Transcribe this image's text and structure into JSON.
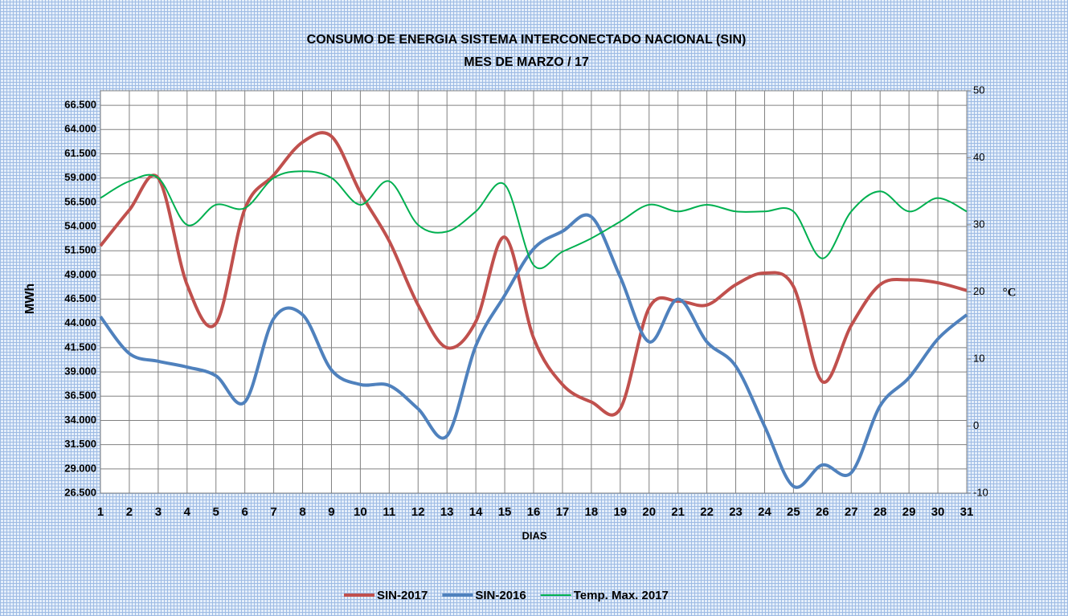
{
  "chart_data": {
    "type": "line",
    "title": "CONSUMO DE ENERGIA SISTEMA INTERCONECTADO NACIONAL (SIN)",
    "subtitle": "MES DE  MARZO / 17",
    "x_label": "DIAS",
    "y_label": "MWh",
    "y2_label": "°C",
    "x": [
      1,
      2,
      3,
      4,
      5,
      6,
      7,
      8,
      9,
      10,
      11,
      12,
      13,
      14,
      15,
      16,
      17,
      18,
      19,
      20,
      21,
      22,
      23,
      24,
      25,
      26,
      27,
      28,
      29,
      30,
      31
    ],
    "xlim": [
      1,
      31
    ],
    "xticks": [
      1,
      2,
      3,
      4,
      5,
      6,
      7,
      8,
      9,
      10,
      11,
      12,
      13,
      14,
      15,
      16,
      17,
      18,
      19,
      20,
      21,
      22,
      23,
      24,
      25,
      26,
      27,
      28,
      29,
      30,
      31
    ],
    "ylim": [
      26500,
      68000
    ],
    "yticks": [
      {
        "value": 26500,
        "label": "26.500"
      },
      {
        "value": 29000,
        "label": "29.000"
      },
      {
        "value": 31500,
        "label": "31.500"
      },
      {
        "value": 34000,
        "label": "34.000"
      },
      {
        "value": 36500,
        "label": "36.500"
      },
      {
        "value": 39000,
        "label": "39.000"
      },
      {
        "value": 41500,
        "label": "41.500"
      },
      {
        "value": 44000,
        "label": "44.000"
      },
      {
        "value": 46500,
        "label": "46.500"
      },
      {
        "value": 49000,
        "label": "49.000"
      },
      {
        "value": 51500,
        "label": "51.500"
      },
      {
        "value": 54000,
        "label": "54.000"
      },
      {
        "value": 56500,
        "label": "56.500"
      },
      {
        "value": 59000,
        "label": "59.000"
      },
      {
        "value": 61500,
        "label": "61.500"
      },
      {
        "value": 64000,
        "label": "64.000"
      },
      {
        "value": 66500,
        "label": "66.500"
      }
    ],
    "y2lim": [
      -10,
      50
    ],
    "y2ticks": [
      -10,
      0,
      10,
      20,
      30,
      40,
      50
    ],
    "grid": true,
    "legend": "bottom",
    "series": [
      {
        "name": "SIN-2017",
        "color": "#c0504d",
        "values": [
          52000,
          55700,
          59000,
          48000,
          44000,
          55800,
          59300,
          62700,
          63300,
          57500,
          52500,
          45900,
          41500,
          44200,
          52900,
          42500,
          37700,
          35900,
          35200,
          45600,
          46300,
          45900,
          48000,
          49200,
          47800,
          38000,
          43800,
          48000,
          48500,
          48200,
          47400
        ]
      },
      {
        "name": "SIN-2016",
        "color": "#4f81bd",
        "values": [
          44700,
          40900,
          40100,
          39500,
          38600,
          35900,
          44500,
          44900,
          39200,
          37700,
          37600,
          35200,
          32400,
          41700,
          46900,
          51700,
          53500,
          55000,
          48800,
          42100,
          46500,
          42100,
          39600,
          33400,
          27200,
          29400,
          28600,
          35500,
          38400,
          42400,
          44900
        ]
      },
      {
        "name": "Temp. Max. 2017",
        "color": "#00b050",
        "axis": "y2",
        "values": [
          34,
          36.5,
          37,
          30,
          33,
          32.5,
          37,
          38,
          37,
          33,
          36.5,
          30,
          29,
          32,
          36,
          24,
          26,
          28,
          30.5,
          33,
          32,
          33,
          32,
          32,
          32,
          25,
          32,
          35,
          32,
          34,
          32
        ]
      }
    ]
  }
}
